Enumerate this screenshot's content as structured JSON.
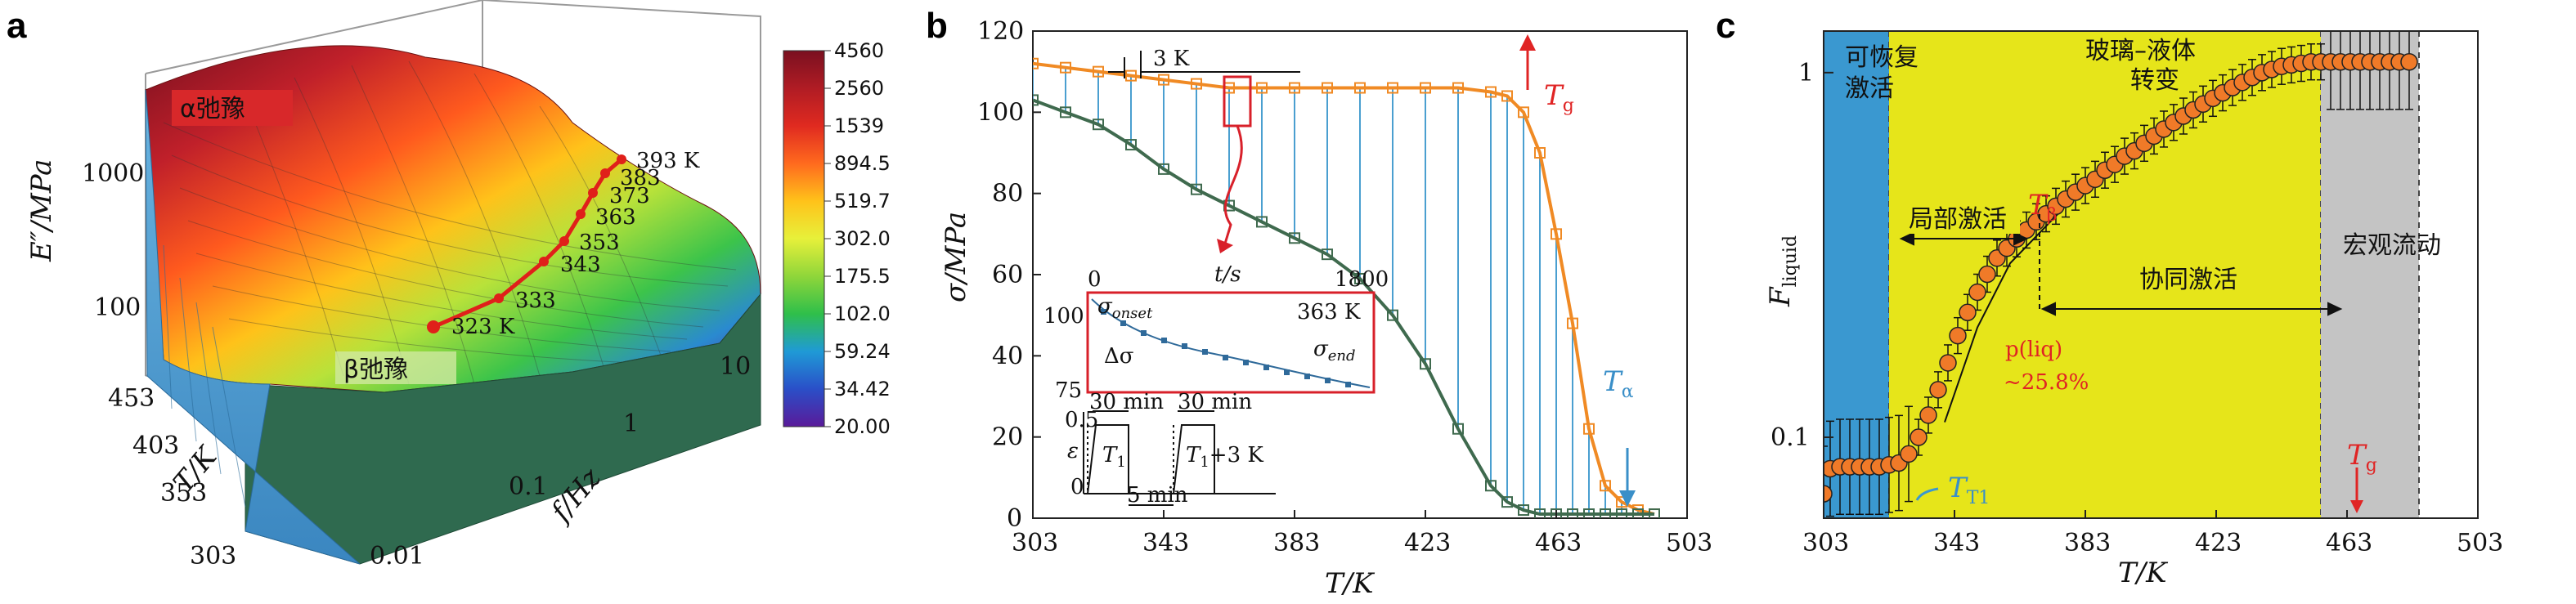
{
  "panels": {
    "a": "a",
    "b": "b",
    "c": "c"
  },
  "chart_data": [
    {
      "type": "surface3d",
      "panel": "a",
      "zlabel": "E″/MPa",
      "xlabel": "T/K",
      "ylabel": "f/Hz",
      "z_ticks": [
        "100",
        "1000"
      ],
      "T_ticks": [
        "303",
        "353",
        "403",
        "453"
      ],
      "f_ticks": [
        "0.01",
        "0.1",
        "1",
        "10"
      ],
      "region_labels": {
        "alpha": "α弛豫",
        "beta": "β弛豫"
      },
      "ridge_labels": [
        "323 K",
        "333",
        "343",
        "353",
        "363",
        "373",
        "383",
        "393 K"
      ],
      "colorbar": {
        "ticks": [
          "4560",
          "2560",
          "1539",
          "894.5",
          "519.7",
          "302.0",
          "175.5",
          "102.0",
          "59.24",
          "34.42",
          "20.00"
        ],
        "colors": [
          "#7a1020",
          "#b01c24",
          "#e02a20",
          "#ff6a1e",
          "#ffc21a",
          "#e7f03a",
          "#8fd63a",
          "#2fbf4a",
          "#1f9ad6",
          "#2a4fc8",
          "#5a1a9a"
        ]
      }
    },
    {
      "type": "line",
      "panel": "b",
      "xlabel": "T/K",
      "ylabel": "σ/MPa",
      "xlim": [
        303,
        503
      ],
      "ylim": [
        0,
        120
      ],
      "x_ticks": [
        303,
        343,
        383,
        423,
        463,
        503
      ],
      "y_ticks": [
        0,
        20,
        40,
        60,
        80,
        100,
        120
      ],
      "series": [
        {
          "color": "#f08a24",
          "x": [
            303,
            313,
            323,
            333,
            343,
            353,
            363,
            373,
            383,
            393,
            403,
            413,
            423,
            433,
            443,
            448,
            453,
            458,
            463,
            468,
            473,
            478,
            483,
            488,
            493
          ],
          "y": [
            112,
            111,
            110,
            109,
            108,
            107,
            106,
            106,
            106,
            106,
            106,
            106,
            106,
            106,
            105,
            104,
            100,
            90,
            70,
            48,
            22,
            8,
            4,
            2,
            1
          ]
        },
        {
          "color": "#3f6a4e",
          "x": [
            303,
            313,
            323,
            333,
            343,
            353,
            363,
            373,
            383,
            393,
            403,
            413,
            423,
            433,
            443,
            448,
            453,
            458,
            463,
            468,
            473,
            478,
            483,
            488,
            493
          ],
          "y": [
            103,
            100,
            97,
            92,
            86,
            81,
            77,
            73,
            69,
            65,
            59,
            50,
            38,
            22,
            8,
            4,
            2,
            1,
            1,
            1,
            1,
            1,
            1,
            1,
            1
          ]
        }
      ],
      "annotations": {
        "step": "3 K",
        "Tg": "T",
        "Tg_sub": "g",
        "Ta": "T",
        "Ta_sub": "α"
      },
      "inset": {
        "xlabel": "t/s",
        "x_max": "1800",
        "temperature": "363 K",
        "y_ticks": [
          "100",
          "75"
        ],
        "onset_label": "σ",
        "onset_sub": "onset",
        "end_label": "σ",
        "end_sub": "end",
        "delta_label": "Δσ",
        "protocol": {
          "eps": "ε",
          "eps_tick": "0.5",
          "zero": "0",
          "hold1": "30 min",
          "hold2": "30 min",
          "T1": "T",
          "T1_sub": "1",
          "T2": "T",
          "T2_sub": "1",
          "T2_suffix": "+3 K",
          "gap": "5 min"
        }
      }
    },
    {
      "type": "scatter",
      "panel": "c",
      "xlabel": "T/K",
      "ylabel": "F",
      "ylabel_sub": "liquid",
      "xlim": [
        303,
        503
      ],
      "ylim_log": [
        0.06,
        1.3
      ],
      "x_ticks": [
        303,
        343,
        383,
        423,
        463,
        503
      ],
      "y_ticks": [
        "0.1",
        "1"
      ],
      "y_tick_values": [
        0.1,
        1
      ],
      "regions": [
        {
          "from": 303,
          "to": 323,
          "color": "#3a98d0",
          "label": [
            "可恢复",
            "激活"
          ]
        },
        {
          "from": 323,
          "to": 455,
          "color": "#e6e51a",
          "label": [
            "玻璃–液体",
            "转变"
          ]
        },
        {
          "from": 455,
          "to": 485,
          "color": "#c4c4c4",
          "label": [
            "宏观流动"
          ]
        }
      ],
      "arrows": {
        "local": "局部激活",
        "cooperative": "协同激活"
      },
      "annotations": {
        "Tb": "T",
        "Tb_sub": "β",
        "pliq": "p(liq)",
        "pct": "~25.8%",
        "Tg": "T",
        "Tg_sub": "g",
        "TT1": "T",
        "TT1_sub": "T1"
      },
      "marker_color": "#f07a28",
      "x": [
        303,
        305,
        308,
        311,
        314,
        317,
        320,
        323,
        326,
        329,
        332,
        335,
        338,
        341,
        344,
        347,
        350,
        353,
        356,
        359,
        362,
        365,
        368,
        371,
        374,
        377,
        380,
        383,
        386,
        389,
        392,
        395,
        398,
        401,
        404,
        407,
        410,
        413,
        416,
        419,
        422,
        425,
        428,
        431,
        434,
        437,
        440,
        443,
        446,
        449,
        452,
        455,
        458,
        461,
        464,
        467,
        470,
        473,
        476,
        479,
        482
      ],
      "y": [
        0.07,
        0.082,
        0.083,
        0.083,
        0.083,
        0.083,
        0.083,
        0.084,
        0.085,
        0.09,
        0.1,
        0.115,
        0.135,
        0.16,
        0.19,
        0.22,
        0.25,
        0.28,
        0.31,
        0.33,
        0.35,
        0.37,
        0.39,
        0.41,
        0.43,
        0.45,
        0.47,
        0.49,
        0.51,
        0.54,
        0.56,
        0.59,
        0.61,
        0.64,
        0.67,
        0.7,
        0.73,
        0.76,
        0.79,
        0.82,
        0.85,
        0.88,
        0.91,
        0.94,
        0.97,
        1.0,
        1.02,
        1.04,
        1.05,
        1.06,
        1.07,
        1.07,
        1.07,
        1.07,
        1.07,
        1.07,
        1.07,
        1.07,
        1.07,
        1.07,
        1.07
      ]
    }
  ]
}
